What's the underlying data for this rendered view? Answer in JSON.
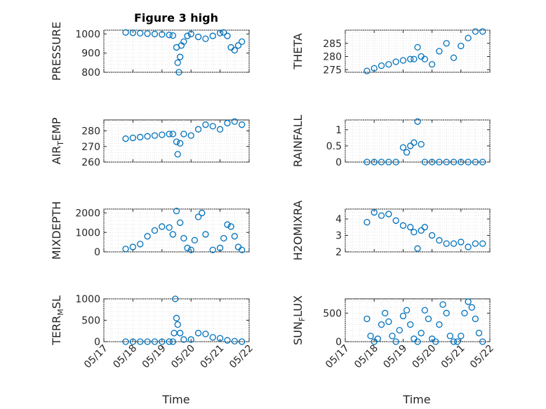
{
  "figure": {
    "title": "Figure 3 high",
    "x_label": "Time",
    "x_ticks": [
      "05/17",
      "05/18",
      "05/19",
      "05/20",
      "05/21",
      "05/22"
    ],
    "marker_color": "#0072bd"
  },
  "chart_data": [
    {
      "type": "scatter",
      "ylabel": "PRESSURE",
      "ylim": [
        800,
        1020
      ],
      "yticks": [
        800,
        900,
        1000
      ],
      "ytick_labels": [
        "800",
        "900",
        "1000"
      ],
      "x": [
        "05/17 18:00",
        "05/18 00:00",
        "05/18 06:00",
        "05/18 12:00",
        "05/18 18:00",
        "05/19 00:00",
        "05/19 06:00",
        "05/19 09:00",
        "05/19 12:00",
        "05/19 13:00",
        "05/19 14:00",
        "05/19 15:00",
        "05/19 16:00",
        "05/19 18:00",
        "05/19 21:00",
        "05/20 00:00",
        "05/20 06:00",
        "05/20 12:00",
        "05/20 18:00",
        "05/21 00:00",
        "05/21 03:00",
        "05/21 06:00",
        "05/21 09:00",
        "05/21 12:00",
        "05/21 15:00",
        "05/21 18:00"
      ],
      "y": [
        1008,
        1006,
        1004,
        1002,
        1000,
        998,
        995,
        992,
        930,
        850,
        800,
        880,
        940,
        960,
        990,
        1000,
        985,
        975,
        990,
        1005,
        1008,
        990,
        930,
        915,
        940,
        960
      ]
    },
    {
      "type": "scatter",
      "ylabel": "THETA",
      "ylim": [
        274,
        290
      ],
      "yticks": [
        275,
        280,
        285
      ],
      "ytick_labels": [
        "275",
        "280",
        "285"
      ],
      "x": [
        "05/17 18:00",
        "05/18 00:00",
        "05/18 06:00",
        "05/18 12:00",
        "05/18 18:00",
        "05/19 00:00",
        "05/19 06:00",
        "05/19 09:00",
        "05/19 12:00",
        "05/19 15:00",
        "05/19 18:00",
        "05/20 00:00",
        "05/20 06:00",
        "05/20 12:00",
        "05/20 18:00",
        "05/21 00:00",
        "05/21 06:00",
        "05/21 12:00",
        "05/21 18:00"
      ],
      "y": [
        274.5,
        275.5,
        276.5,
        277,
        278,
        278.5,
        279,
        279,
        283.5,
        280,
        279,
        277,
        282,
        285,
        279.5,
        284,
        287,
        289.5,
        289.5
      ]
    },
    {
      "type": "scatter",
      "ylabel": "AIR_TEMP",
      "ylim": [
        260,
        287
      ],
      "yticks": [
        260,
        270,
        280
      ],
      "ytick_labels": [
        "260",
        "270",
        "280"
      ],
      "x": [
        "05/17 18:00",
        "05/18 00:00",
        "05/18 06:00",
        "05/18 12:00",
        "05/18 18:00",
        "05/19 00:00",
        "05/19 06:00",
        "05/19 09:00",
        "05/19 12:00",
        "05/19 13:00",
        "05/19 15:00",
        "05/19 18:00",
        "05/20 00:00",
        "05/20 06:00",
        "05/20 12:00",
        "05/20 18:00",
        "05/21 00:00",
        "05/21 06:00",
        "05/21 12:00",
        "05/21 18:00"
      ],
      "y": [
        275,
        275.5,
        276,
        276.5,
        277,
        277.5,
        278,
        278,
        273,
        265,
        272,
        278,
        277,
        281,
        284,
        283,
        281,
        285,
        286,
        284
      ]
    },
    {
      "type": "scatter",
      "ylabel": "RAINFALL",
      "ylim": [
        0,
        1.3
      ],
      "yticks": [
        0,
        0.5,
        1
      ],
      "ytick_labels": [
        "0",
        "0.5",
        "1"
      ],
      "x": [
        "05/17 18:00",
        "05/18 00:00",
        "05/18 06:00",
        "05/18 12:00",
        "05/18 18:00",
        "05/19 00:00",
        "05/19 03:00",
        "05/19 06:00",
        "05/19 09:00",
        "05/19 12:00",
        "05/19 15:00",
        "05/19 18:00",
        "05/20 00:00",
        "05/20 06:00",
        "05/20 12:00",
        "05/20 18:00",
        "05/21 00:00",
        "05/21 06:00",
        "05/21 12:00",
        "05/21 18:00"
      ],
      "y": [
        0,
        0,
        0,
        0,
        0,
        0.45,
        0.3,
        0.5,
        0.6,
        1.25,
        0.55,
        0,
        0,
        0,
        0,
        0,
        0,
        0,
        0,
        0
      ]
    },
    {
      "type": "scatter",
      "ylabel": "MIXDEPTH",
      "ylim": [
        0,
        2200
      ],
      "yticks": [
        0,
        1000,
        2000
      ],
      "ytick_labels": [
        "0",
        "1000",
        "2000"
      ],
      "x": [
        "05/17 18:00",
        "05/18 00:00",
        "05/18 06:00",
        "05/18 12:00",
        "05/18 18:00",
        "05/19 00:00",
        "05/19 06:00",
        "05/19 09:00",
        "05/19 12:00",
        "05/19 15:00",
        "05/19 18:00",
        "05/19 21:00",
        "05/20 00:00",
        "05/20 03:00",
        "05/20 06:00",
        "05/20 09:00",
        "05/20 12:00",
        "05/20 18:00",
        "05/21 00:00",
        "05/21 03:00",
        "05/21 06:00",
        "05/21 09:00",
        "05/21 12:00",
        "05/21 15:00",
        "05/21 18:00"
      ],
      "y": [
        150,
        250,
        400,
        800,
        1100,
        1300,
        1250,
        900,
        2100,
        1500,
        700,
        200,
        100,
        600,
        1800,
        2000,
        900,
        100,
        200,
        700,
        1400,
        1300,
        800,
        250,
        100
      ]
    },
    {
      "type": "scatter",
      "ylabel": "H2OMIXRA",
      "ylim": [
        2,
        4.6
      ],
      "yticks": [
        2,
        3,
        4
      ],
      "ytick_labels": [
        "2",
        "3",
        "4"
      ],
      "x": [
        "05/17 18:00",
        "05/18 00:00",
        "05/18 06:00",
        "05/18 12:00",
        "05/18 18:00",
        "05/19 00:00",
        "05/19 06:00",
        "05/19 09:00",
        "05/19 12:00",
        "05/19 15:00",
        "05/19 18:00",
        "05/20 00:00",
        "05/20 06:00",
        "05/20 12:00",
        "05/20 18:00",
        "05/21 00:00",
        "05/21 06:00",
        "05/21 12:00",
        "05/21 18:00"
      ],
      "y": [
        3.8,
        4.4,
        4.2,
        4.3,
        3.9,
        3.6,
        3.5,
        3.2,
        2.2,
        3.3,
        3.5,
        3.0,
        2.7,
        2.5,
        2.5,
        2.6,
        2.3,
        2.5,
        2.5
      ]
    },
    {
      "type": "scatter",
      "ylabel": "TERR_MSL",
      "ylim": [
        0,
        1000
      ],
      "yticks": [
        0,
        500,
        1000
      ],
      "ytick_labels": [
        "0",
        "500",
        "1000"
      ],
      "x": [
        "05/17 18:00",
        "05/18 00:00",
        "05/18 06:00",
        "05/18 12:00",
        "05/18 18:00",
        "05/19 00:00",
        "05/19 06:00",
        "05/19 09:00",
        "05/19 10:00",
        "05/19 11:00",
        "05/19 12:00",
        "05/19 13:00",
        "05/19 15:00",
        "05/19 18:00",
        "05/20 00:00",
        "05/20 06:00",
        "05/20 12:00",
        "05/20 18:00",
        "05/21 00:00",
        "05/21 06:00",
        "05/21 12:00",
        "05/21 18:00"
      ],
      "y": [
        0,
        0,
        0,
        0,
        0,
        0,
        0,
        0,
        200,
        1000,
        550,
        400,
        200,
        50,
        50,
        200,
        180,
        100,
        80,
        30,
        10,
        0
      ]
    },
    {
      "type": "scatter",
      "ylabel": "SUN_FLUX",
      "ylim": [
        0,
        750
      ],
      "yticks": [
        0,
        500
      ],
      "ytick_labels": [
        "0",
        "500"
      ],
      "x": [
        "05/17 18:00",
        "05/17 21:00",
        "05/18 00:00",
        "05/18 03:00",
        "05/18 06:00",
        "05/18 09:00",
        "05/18 12:00",
        "05/18 15:00",
        "05/18 18:00",
        "05/18 21:00",
        "05/19 00:00",
        "05/19 03:00",
        "05/19 06:00",
        "05/19 09:00",
        "05/19 12:00",
        "05/19 15:00",
        "05/19 18:00",
        "05/19 21:00",
        "05/20 00:00",
        "05/20 03:00",
        "05/20 06:00",
        "05/20 09:00",
        "05/20 12:00",
        "05/20 15:00",
        "05/20 18:00",
        "05/20 21:00",
        "05/21 00:00",
        "05/21 03:00",
        "05/21 06:00",
        "05/21 09:00",
        "05/21 12:00",
        "05/21 15:00",
        "05/21 18:00"
      ],
      "y": [
        400,
        100,
        0,
        50,
        300,
        500,
        350,
        100,
        0,
        200,
        450,
        550,
        300,
        50,
        0,
        150,
        550,
        400,
        50,
        0,
        300,
        650,
        500,
        100,
        0,
        0,
        100,
        500,
        700,
        600,
        400,
        150,
        0
      ]
    }
  ]
}
